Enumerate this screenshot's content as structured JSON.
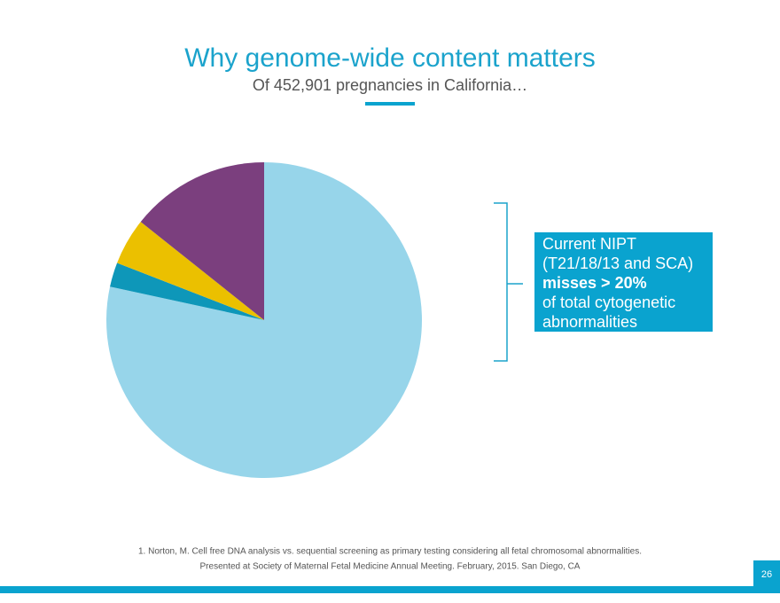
{
  "chart_data": {
    "type": "pie",
    "title": "Why genome-wide content matters",
    "subtitle": "Of 452,901 pregnancies in California…",
    "values": [
      78.4,
      2.5,
      4.8,
      14.3
    ],
    "colors": [
      "#97d5ea",
      "#0e97b9",
      "#ebc000",
      "#7b3f7e"
    ]
  },
  "callout": {
    "lines": [
      "Current NIPT",
      "(T21/18/13 and SCA)",
      "misses > 20%",
      "of total cytogenetic",
      "abnormalities"
    ]
  },
  "footnote": {
    "lines": [
      "1. Norton, M. Cell free DNA analysis vs. sequential screening as primary testing considering all fetal chromosomal abnormalities.",
      "Presented at Society of Maternal Fetal Medicine Annual Meeting. February, 2015. San Diego, CA"
    ]
  },
  "page_number": "26"
}
